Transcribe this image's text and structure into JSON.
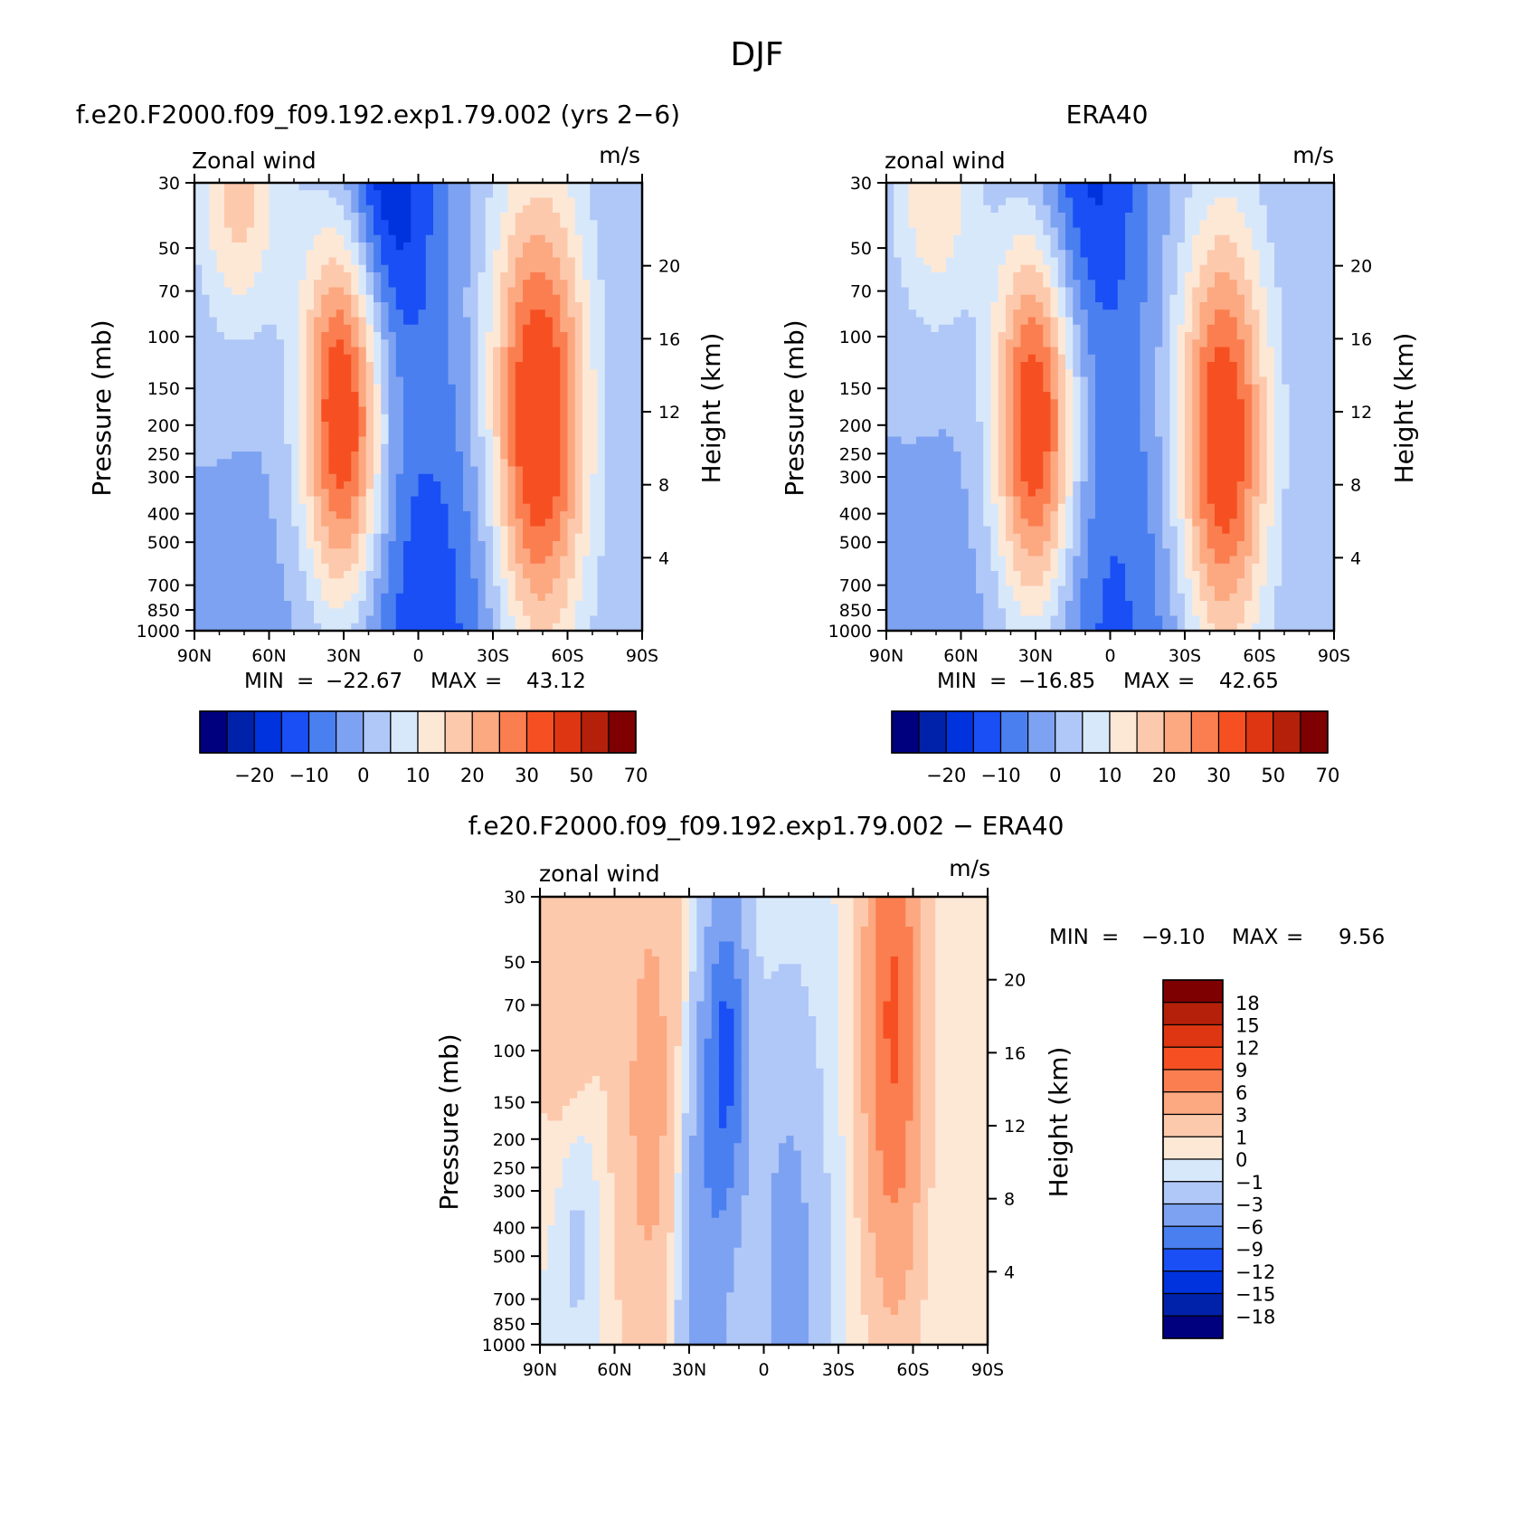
{
  "figure_title": "DJF",
  "chart_data": [
    {
      "type": "heatmap",
      "title": "f.e20.F2000.f09_f09.192.exp1.79.002 (yrs 2−6)",
      "left_label": "Zonal wind",
      "right_label": "m/s",
      "ylabel": "Pressure (mb)",
      "ylabel2": "Height (km)",
      "x_ticks": [
        "90N",
        "60N",
        "30N",
        "0",
        "30S",
        "60S",
        "90S"
      ],
      "x_range": [
        90,
        -90
      ],
      "y_ticks": [
        "30",
        "50",
        "70",
        "100",
        "150",
        "200",
        "250",
        "300",
        "400",
        "500",
        "700",
        "850",
        "1000"
      ],
      "y_range": [
        1000,
        30
      ],
      "y_log_scale": true,
      "height_ticks": [
        "20",
        "16",
        "12",
        "8",
        "4"
      ],
      "min_label": "MIN",
      "min_value": "−22.67",
      "max_label": "MAX",
      "max_value": "43.12",
      "contour_levels": [
        -25,
        -20,
        -15,
        -10,
        -5,
        0,
        5,
        10,
        15,
        20,
        25,
        30,
        40,
        50,
        60,
        70
      ],
      "colorbar_labels": [
        "−20",
        "−10",
        "0",
        "10",
        "20",
        "30",
        "50",
        "70"
      ],
      "colorbar_orientation": "horizontal",
      "features": [
        {
          "lat": 30,
          "p": 180,
          "value": 43,
          "sigma_lat": 12,
          "sigma_lnp": 1.2
        },
        {
          "lat": -48,
          "p": 200,
          "value": 40,
          "sigma_lat": 14,
          "sigma_lnp": 1.3
        },
        {
          "lat": 72,
          "p": 30,
          "value": 18,
          "sigma_lat": 12,
          "sigma_lnp": 0.8
        },
        {
          "lat": 15,
          "p": 30,
          "value": -22,
          "sigma_lat": 15,
          "sigma_lnp": 1.0
        },
        {
          "lat": 2,
          "p": 900,
          "value": -14,
          "sigma_lat": 30,
          "sigma_lnp": 1.5
        }
      ]
    },
    {
      "type": "heatmap",
      "title": "ERA40",
      "left_label": "zonal wind",
      "right_label": "m/s",
      "ylabel": "Pressure (mb)",
      "ylabel2": "Height (km)",
      "x_ticks": [
        "90N",
        "60N",
        "30N",
        "0",
        "30S",
        "60S",
        "90S"
      ],
      "x_range": [
        90,
        -90
      ],
      "y_ticks": [
        "30",
        "50",
        "70",
        "100",
        "150",
        "200",
        "250",
        "300",
        "400",
        "500",
        "700",
        "850",
        "1000"
      ],
      "y_range": [
        1000,
        30
      ],
      "y_log_scale": true,
      "height_ticks": [
        "20",
        "16",
        "12",
        "8",
        "4"
      ],
      "min_label": "MIN",
      "min_value": "−16.85",
      "max_label": "MAX",
      "max_value": "42.65",
      "contour_levels": [
        -25,
        -20,
        -15,
        -10,
        -5,
        0,
        5,
        10,
        15,
        20,
        25,
        30,
        40,
        50,
        60,
        70
      ],
      "colorbar_labels": [
        "−20",
        "−10",
        "0",
        "10",
        "20",
        "30",
        "50",
        "70"
      ],
      "colorbar_orientation": "horizontal",
      "features": [
        {
          "lat": 30,
          "p": 200,
          "value": 42,
          "sigma_lat": 12,
          "sigma_lnp": 1.2
        },
        {
          "lat": -45,
          "p": 230,
          "value": 38,
          "sigma_lat": 13,
          "sigma_lnp": 1.2
        },
        {
          "lat": 70,
          "p": 30,
          "value": 15,
          "sigma_lat": 12,
          "sigma_lnp": 0.8
        },
        {
          "lat": 12,
          "p": 30,
          "value": -17,
          "sigma_lat": 18,
          "sigma_lnp": 1.0
        },
        {
          "lat": 8,
          "p": 900,
          "value": -12,
          "sigma_lat": 30,
          "sigma_lnp": 1.5
        }
      ]
    },
    {
      "type": "heatmap",
      "title": "f.e20.F2000.f09_f09.192.exp1.79.002 − ERA40",
      "left_label": "zonal wind",
      "right_label": "m/s",
      "ylabel": "Pressure (mb)",
      "ylabel2": "Height (km)",
      "x_ticks": [
        "90N",
        "60N",
        "30N",
        "0",
        "30S",
        "60S",
        "90S"
      ],
      "x_range": [
        90,
        -90
      ],
      "y_ticks": [
        "30",
        "50",
        "70",
        "100",
        "150",
        "200",
        "250",
        "300",
        "400",
        "500",
        "700",
        "850",
        "1000"
      ],
      "y_range": [
        1000,
        30
      ],
      "y_log_scale": true,
      "height_ticks": [
        "20",
        "16",
        "12",
        "8",
        "4"
      ],
      "min_label": "MIN",
      "min_value": "−9.10",
      "max_label": "MAX",
      "max_value": "9.56",
      "contour_levels": [
        -18,
        -15,
        -12,
        -9,
        -6,
        -3,
        -1,
        0,
        1,
        3,
        6,
        9,
        12,
        15,
        18
      ],
      "colorbar_labels": [
        "18",
        "15",
        "12",
        "9",
        "6",
        "3",
        "1",
        "0",
        "−1",
        "−3",
        "−6",
        "−9",
        "−12",
        "−15",
        "−18"
      ],
      "colorbar_orientation": "vertical",
      "features": [
        {
          "lat": -52,
          "p": 80,
          "value": 9.5,
          "sigma_lat": 8,
          "sigma_lnp": 1.5
        },
        {
          "lat": 45,
          "p": 150,
          "value": 4,
          "sigma_lat": 10,
          "sigma_lnp": 1.6
        },
        {
          "lat": 80,
          "p": 50,
          "value": 3,
          "sigma_lat": 10,
          "sigma_lnp": 1.0
        },
        {
          "lat": 15,
          "p": 100,
          "value": -9,
          "sigma_lat": 6,
          "sigma_lnp": 0.9
        },
        {
          "lat": 25,
          "p": 600,
          "value": -5,
          "sigma_lat": 8,
          "sigma_lnp": 1.5
        },
        {
          "lat": -10,
          "p": 600,
          "value": -4,
          "sigma_lat": 10,
          "sigma_lnp": 1.5
        },
        {
          "lat": 75,
          "p": 400,
          "value": -1.5,
          "sigma_lat": 6,
          "sigma_lnp": 0.8
        }
      ]
    }
  ],
  "palette": {
    "panel": [
      "#00007f",
      "#0022aa",
      "#0033dd",
      "#1a4ff5",
      "#4a7ff0",
      "#7ea2f2",
      "#b0c8f7",
      "#d8e8fb",
      "#fde8d6",
      "#fdc9ac",
      "#fca881",
      "#fb7e50",
      "#f65022",
      "#de3612",
      "#b5200a",
      "#7f0000"
    ],
    "diff": [
      "#00007f",
      "#0022aa",
      "#0033dd",
      "#1a4ff5",
      "#4a7ff0",
      "#7ea2f2",
      "#b0c8f7",
      "#d8e8fb",
      "#fde8d6",
      "#fdc9ac",
      "#fca881",
      "#fb7e50",
      "#f65022",
      "#de3612",
      "#b5200a",
      "#7f0000"
    ]
  }
}
